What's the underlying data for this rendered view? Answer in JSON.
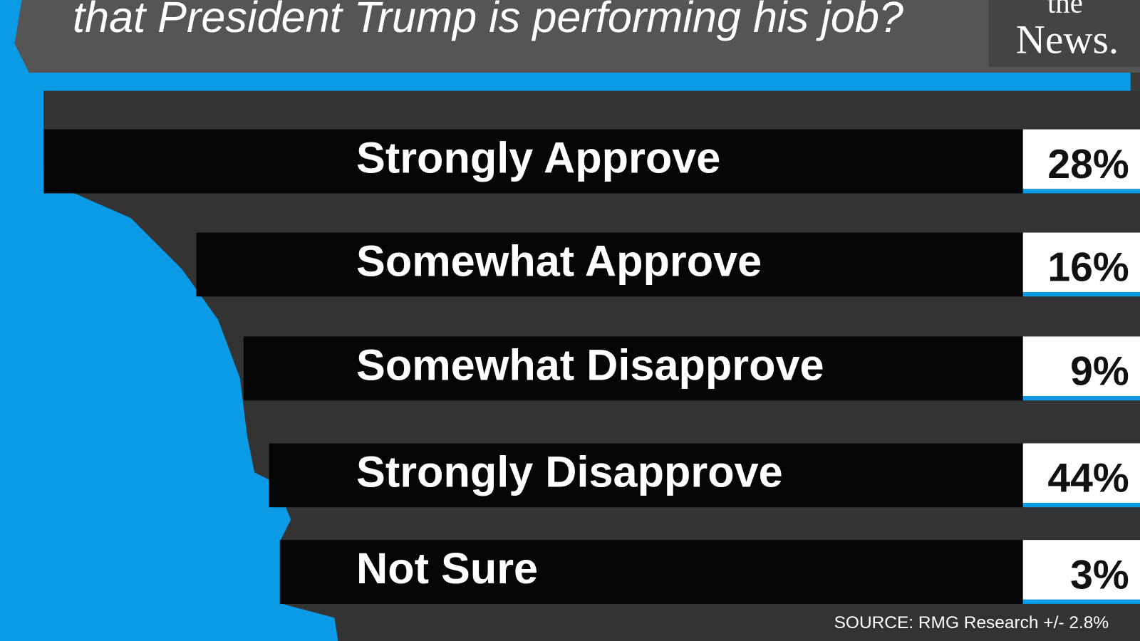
{
  "header": {
    "title": "that President Trump is performing his job?",
    "logo_top": "the",
    "logo_bottom": "News."
  },
  "rows": [
    {
      "label": "Strongly Approve",
      "value": "28%"
    },
    {
      "label": "Somewhat Approve",
      "value": "16%"
    },
    {
      "label": "Somewhat Disapprove",
      "value": "9%"
    },
    {
      "label": "Strongly Disapprove",
      "value": "44%"
    },
    {
      "label": "Not Sure",
      "value": "3%"
    }
  ],
  "source": "SOURCE: RMG Research +/- 2.8%"
}
